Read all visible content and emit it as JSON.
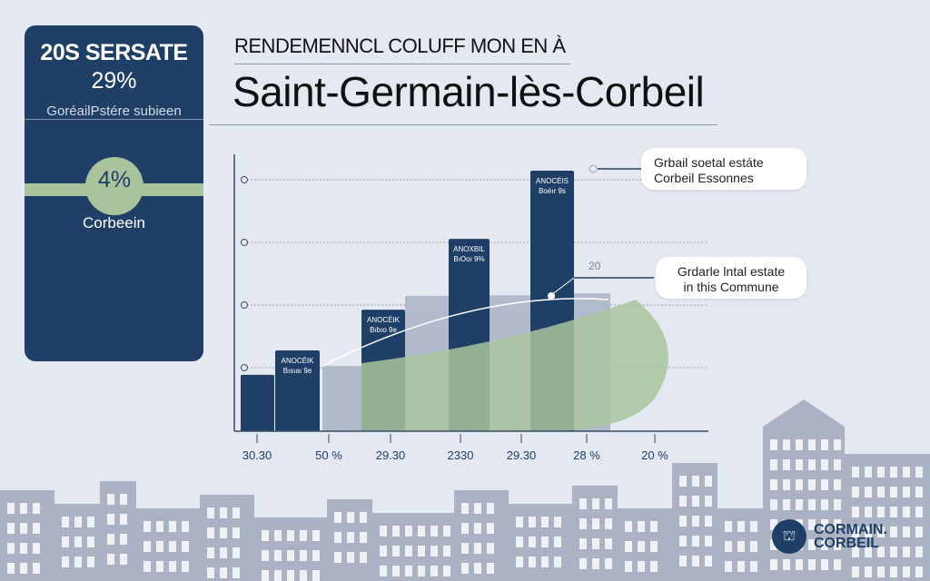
{
  "card": {
    "headline": "20S SERSATE",
    "value": "29%",
    "subtitle": "GoréailPstére subieen",
    "badge": "4%",
    "city": "Corbeein"
  },
  "header": {
    "kicker": "RENDEMENNCL COLUFF MON EN À",
    "title": "Saint-Germain-lès-Corbeil"
  },
  "callouts": [
    {
      "line1": "Grbail soetal estáte",
      "line2": "Corbeil Essonnes"
    },
    {
      "line1": "Grdarle lntal estate",
      "line2": "in this Commune"
    }
  ],
  "annotation": "20",
  "logo": {
    "line1": "CORMAIN.",
    "line2": "CORBEIL"
  },
  "colors": {
    "navy": "#1f3f66",
    "gray": "#a9b3c6",
    "green": "#a9c49c",
    "background": "#e4e8f0"
  },
  "chart_data": {
    "type": "bar",
    "title": "",
    "xlabel": "",
    "ylabel": "",
    "x_tick_labels": [
      "30.30",
      "50 %",
      "29.30",
      "2330",
      "29.30",
      "28 %",
      "20 %"
    ],
    "ylim": [
      0,
      4.2
    ],
    "grid": true,
    "series": [
      {
        "color": "#1f3f66",
        "values": [
          0.9,
          1.29,
          1.94,
          3.07,
          4.16
        ],
        "labels": [
          "",
          "ANOCÉIK Bısıaı 9e",
          "ANOCÉIK Bıbıo 9e",
          "ANOXBIL BıOoı 9%",
          "ANOCÉIS Boéır 9s"
        ]
      },
      {
        "color": "#a9b3c6",
        "values": [
          1.04,
          2.16,
          2.17,
          2.2
        ]
      }
    ],
    "area": {
      "color": "#a9c49c"
    }
  }
}
